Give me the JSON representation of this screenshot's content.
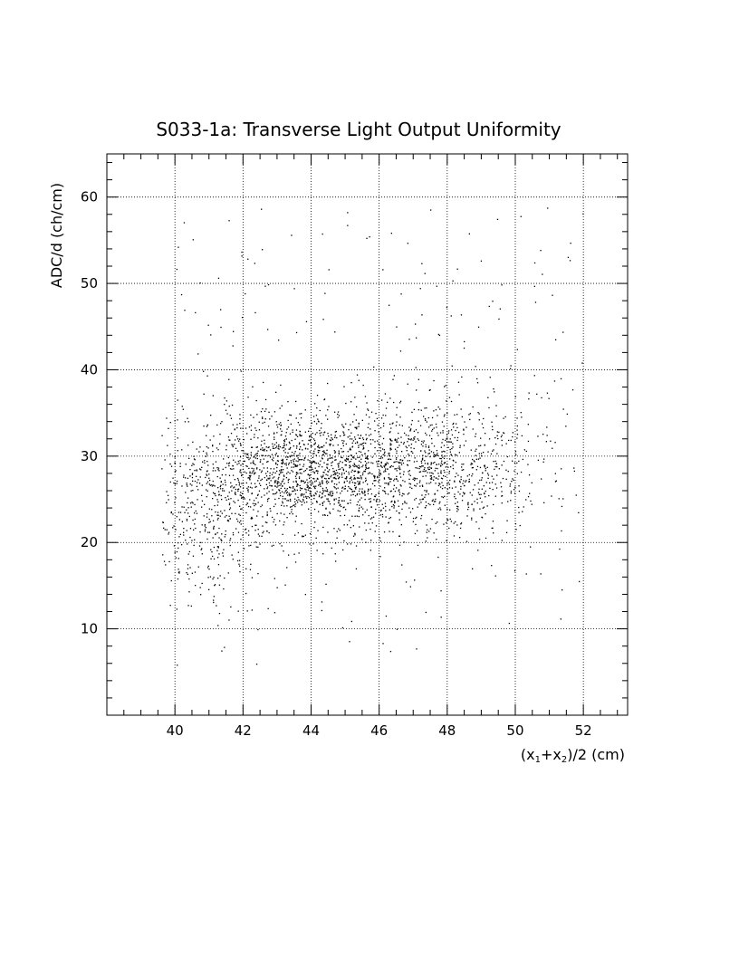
{
  "chart_data": {
    "type": "scatter",
    "title": "S033-1a: Transverse Light Output Uniformity",
    "xlabel": {
      "pre": "(x",
      "sub1": "1",
      "mid": "+x",
      "sub2": "2",
      "post": ")/2 (cm)"
    },
    "ylabel": "ADC/d (ch/cm)",
    "xlim": [
      38,
      53.3
    ],
    "ylim": [
      0,
      65
    ],
    "x_ticks": [
      40,
      42,
      44,
      46,
      48,
      50,
      52
    ],
    "x_tick_labels": [
      "40",
      "42",
      "44",
      "46",
      "48",
      "50",
      "52"
    ],
    "y_ticks": [
      10,
      20,
      30,
      40,
      50,
      60
    ],
    "y_tick_labels": [
      "10",
      "20",
      "30",
      "40",
      "50",
      "60"
    ],
    "grid": true,
    "marker_color": "#000000",
    "point_count": 3000,
    "distribution": {
      "x_range": [
        39.6,
        52
      ],
      "y_range": [
        4,
        59
      ],
      "dense_core": {
        "x_center": 44,
        "x_spread": 2.2,
        "y_center": 28.5,
        "y_spread": 3.5
      },
      "secondary_cluster": {
        "x_center": 48,
        "x_spread": 1.4,
        "y_center": 29,
        "y_spread": 4
      }
    }
  }
}
